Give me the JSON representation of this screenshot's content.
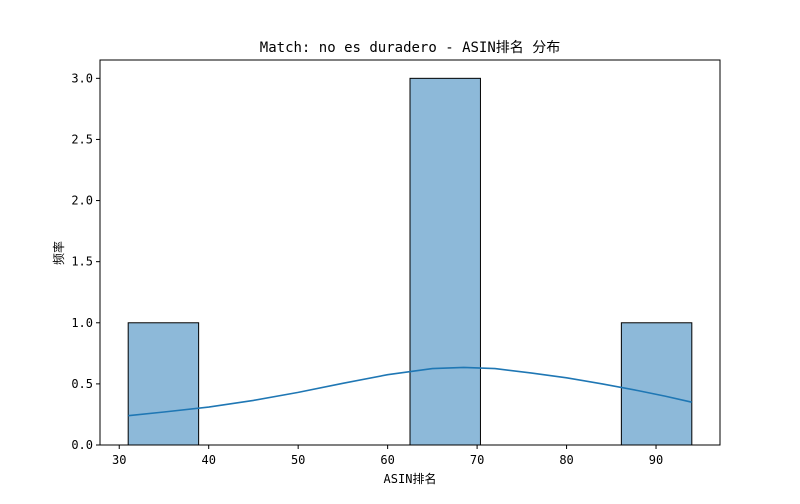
{
  "chart_data": {
    "type": "bar",
    "title": "Match: no es duradero - ASIN排名 分布",
    "xlabel": "ASIN排名",
    "ylabel": "频率",
    "xlim": [
      27.85,
      97.15
    ],
    "ylim": [
      0,
      3.15
    ],
    "xticks": [
      30,
      40,
      50,
      60,
      70,
      80,
      90
    ],
    "yticks": [
      0.0,
      0.5,
      1.0,
      1.5,
      2.0,
      2.5,
      3.0
    ],
    "ytick_labels": [
      "0.0",
      "0.5",
      "1.0",
      "1.5",
      "2.0",
      "2.5",
      "3.0"
    ],
    "bins": [
      {
        "x0": 31.0,
        "x1": 38.875,
        "count": 1
      },
      {
        "x0": 38.875,
        "x1": 46.75,
        "count": 0
      },
      {
        "x0": 46.75,
        "x1": 54.625,
        "count": 0
      },
      {
        "x0": 54.625,
        "x1": 62.5,
        "count": 0
      },
      {
        "x0": 62.5,
        "x1": 70.375,
        "count": 3
      },
      {
        "x0": 70.375,
        "x1": 78.25,
        "count": 0
      },
      {
        "x0": 78.25,
        "x1": 86.125,
        "count": 0
      },
      {
        "x0": 86.125,
        "x1": 94.0,
        "count": 1
      }
    ],
    "kde": {
      "x": [
        31,
        35,
        40,
        45,
        50,
        55,
        60,
        65,
        68.5,
        72,
        76,
        80,
        84,
        88,
        91,
        94
      ],
      "y": [
        0.24,
        0.27,
        0.31,
        0.365,
        0.43,
        0.505,
        0.575,
        0.625,
        0.635,
        0.625,
        0.59,
        0.55,
        0.5,
        0.445,
        0.4,
        0.35
      ]
    },
    "bar_color": "#8db9d9",
    "bar_edge_color": "#000000",
    "kde_color": "#1f77b4",
    "grid": false
  }
}
